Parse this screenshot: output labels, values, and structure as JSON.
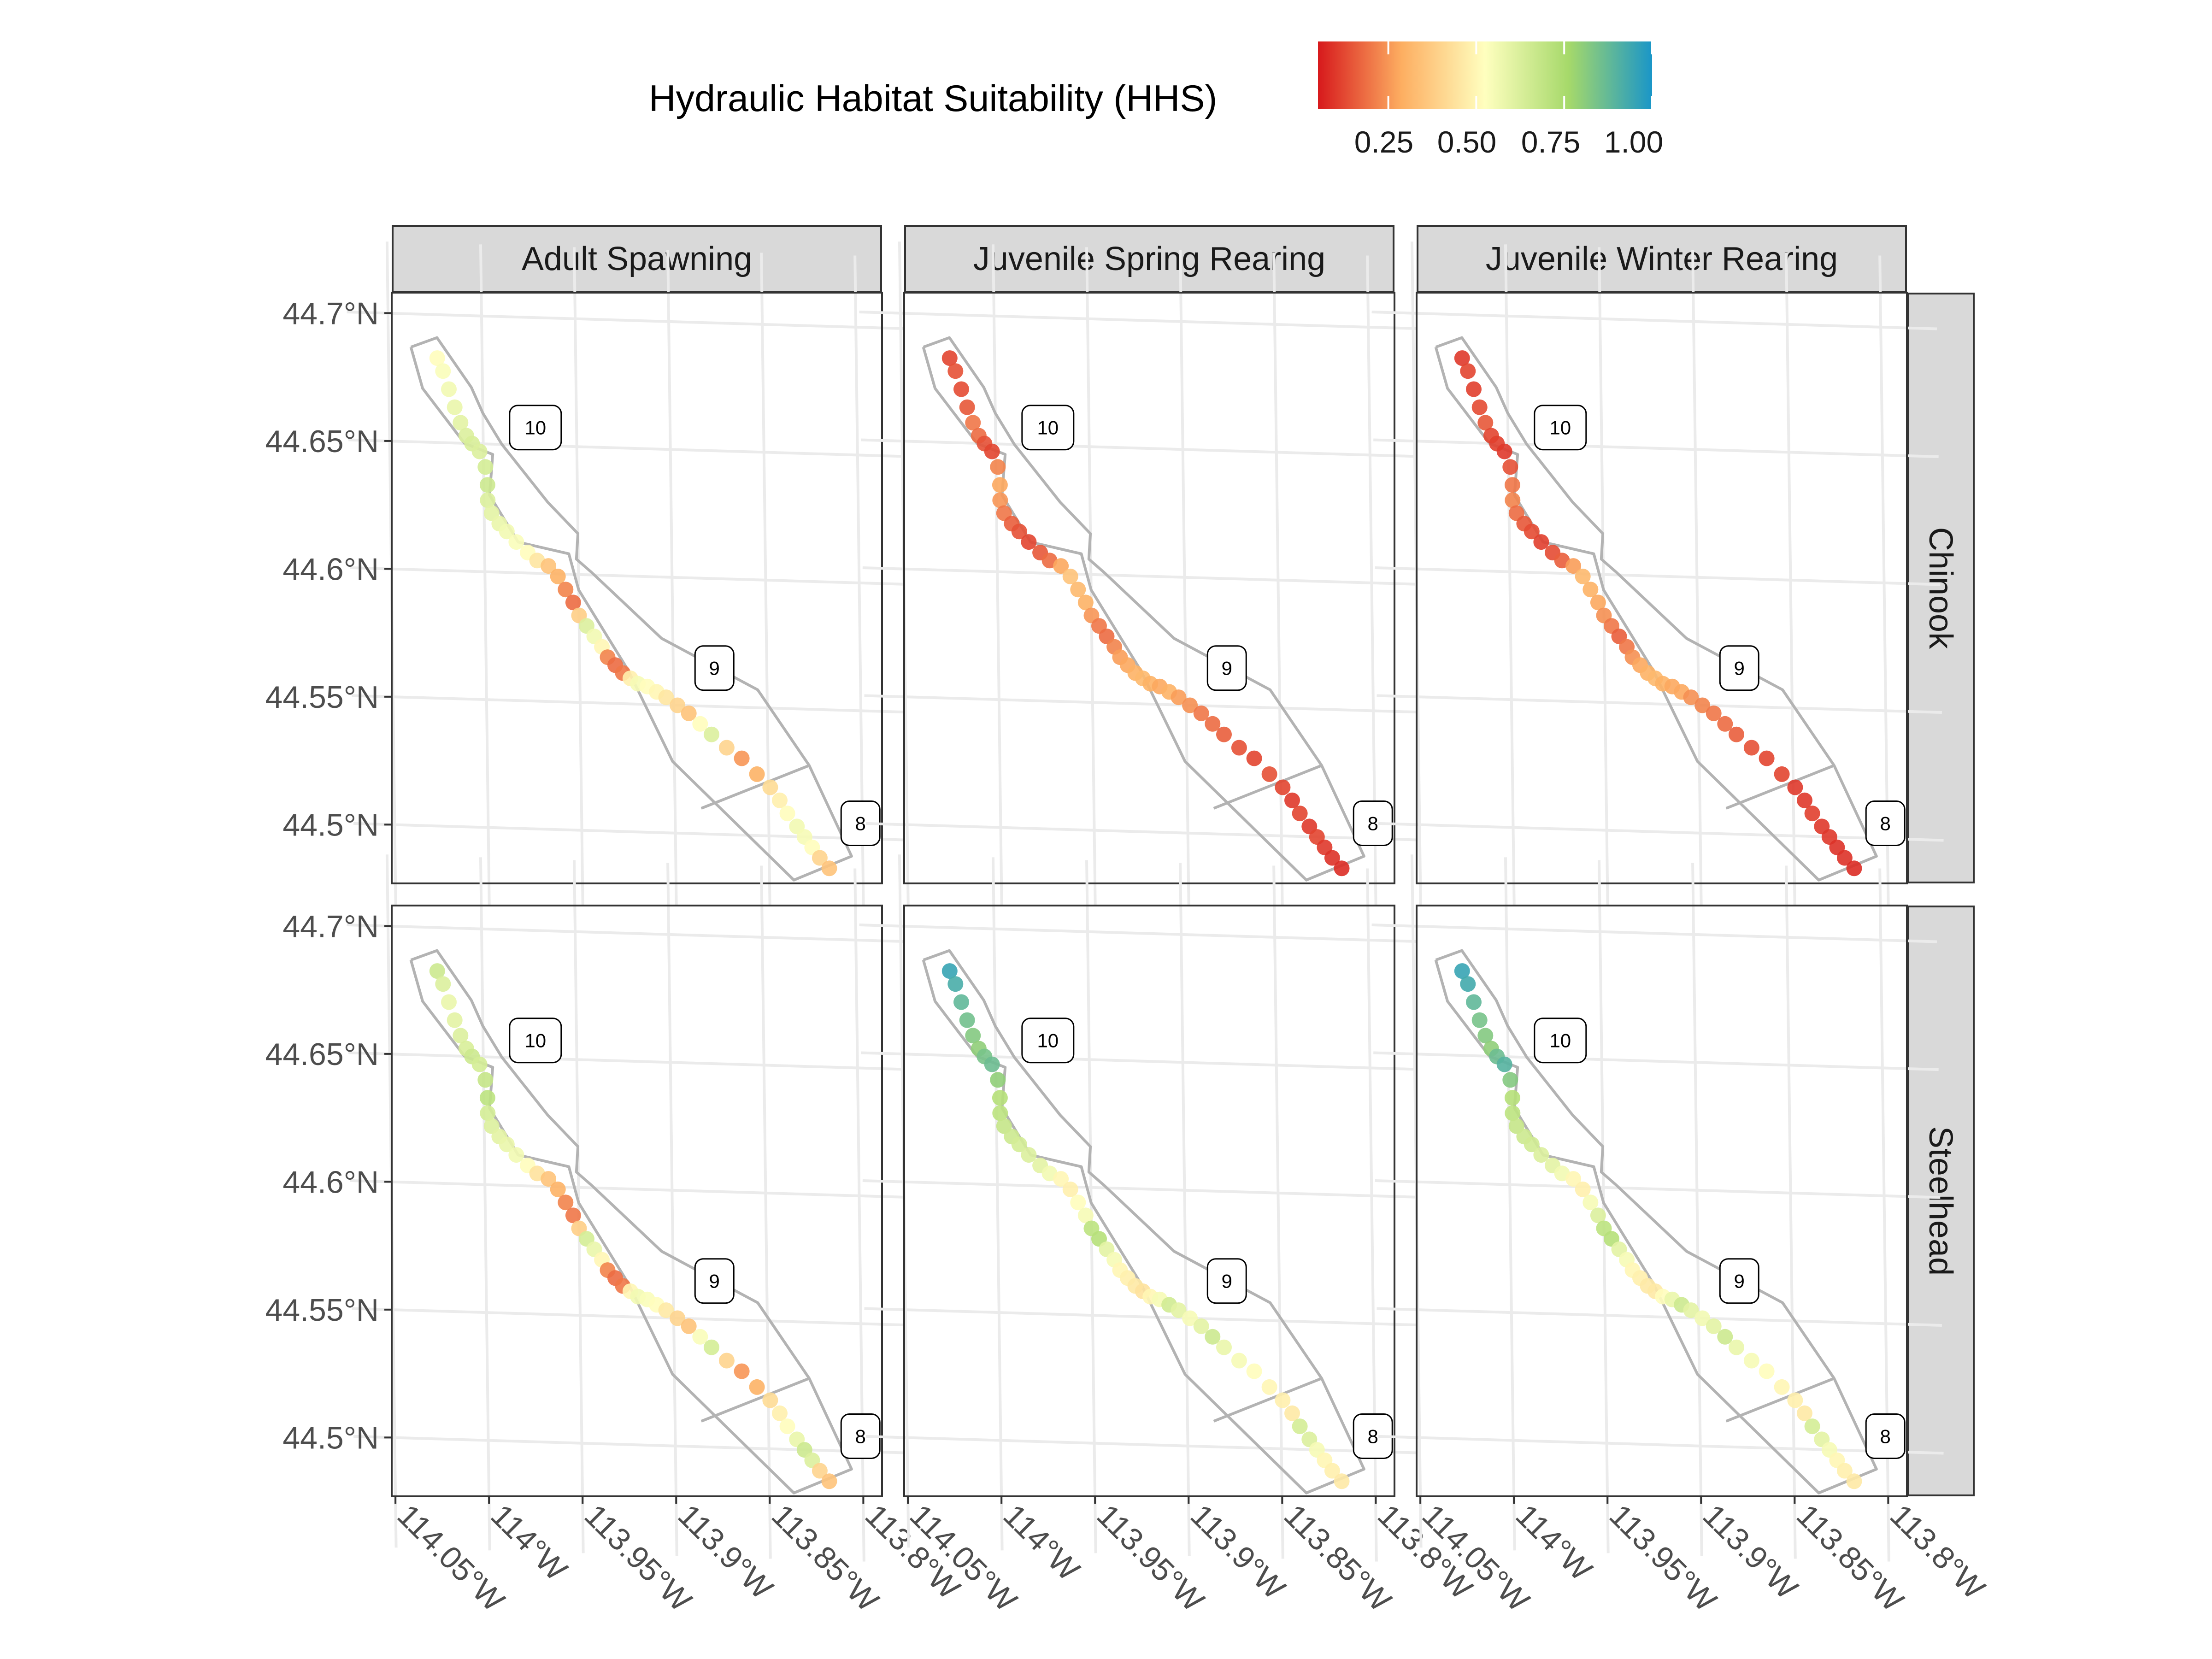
{
  "legend": {
    "title": "Hydraulic Habitat Suitability (HHS)",
    "ticks": [
      "0.25",
      "0.50",
      "0.75",
      "1.00"
    ],
    "tick_values": [
      0.25,
      0.5,
      0.75,
      1.0
    ],
    "range": [
      0.05,
      1.0
    ],
    "colors": [
      "#d7191c",
      "#fdae61",
      "#ffffbf",
      "#a6d96a",
      "#1a96c8"
    ]
  },
  "facets": {
    "columns": [
      "Adult Spawning",
      "Juvenile Spring Rearing",
      "Juvenile Winter Rearing"
    ],
    "rows": [
      "Chinook",
      "Steelhead"
    ]
  },
  "axes": {
    "x_labels": [
      "114.05°W",
      "114°W",
      "113.95°W",
      "113.9°W",
      "113.85°W",
      "113.8°W"
    ],
    "x_values": [
      -114.05,
      -114.0,
      -113.95,
      -113.9,
      -113.85,
      -113.8
    ],
    "y_labels": [
      "44.7°N",
      "44.65°N",
      "44.6°N",
      "44.55°N",
      "44.5°N"
    ],
    "y_values": [
      44.7,
      44.65,
      44.6,
      44.55,
      44.5
    ],
    "xlim": [
      -114.052,
      -113.79
    ],
    "ylim": [
      44.477,
      44.708
    ]
  },
  "reaches": [
    {
      "label": "10",
      "lon": -113.972,
      "lat": 44.657
    },
    {
      "label": "9",
      "lon": -113.878,
      "lat": 44.565
    },
    {
      "label": "8",
      "lon": -113.801,
      "lat": 44.506
    }
  ],
  "reach_boundaries": [
    {
      "lon": [
        -114.038,
        -114.024,
        -114.006,
        -114.0,
        -113.99,
        -113.966,
        -113.95,
        -113.951,
        -113.943,
        -113.906,
        -113.855,
        -113.828,
        -113.806,
        -113.837,
        -113.901,
        -113.924,
        -113.95,
        -113.955,
        -113.982,
        -113.997,
        -113.995,
        -114.01,
        -114.032,
        -114.038
      ],
      "lat": [
        44.687,
        44.691,
        44.672,
        44.662,
        44.65,
        44.628,
        44.616,
        44.606,
        44.601,
        44.576,
        44.557,
        44.528,
        44.493,
        44.483,
        44.528,
        44.563,
        44.594,
        44.608,
        44.612,
        44.63,
        44.646,
        44.65,
        44.671,
        44.687
      ]
    },
    {
      "lon": [
        -113.886,
        -113.828
      ],
      "lat": [
        44.51,
        44.528
      ]
    }
  ],
  "chart_data": {
    "type": "scatter",
    "title": "",
    "xlabel": "",
    "ylabel": "",
    "legend_title": "Hydraulic Habitat Suitability (HHS)",
    "points": {
      "lon": [
        -114.024,
        -114.021,
        -114.018,
        -114.015,
        -114.012,
        -114.009,
        -114.006,
        -114.002,
        -113.999,
        -113.998,
        -113.998,
        -113.996,
        -113.992,
        -113.988,
        -113.983,
        -113.977,
        -113.972,
        -113.966,
        -113.961,
        -113.957,
        -113.953,
        -113.95,
        -113.946,
        -113.942,
        -113.938,
        -113.935,
        -113.931,
        -113.927,
        -113.923,
        -113.919,
        -113.914,
        -113.909,
        -113.904,
        -113.898,
        -113.892,
        -113.886,
        -113.88,
        -113.872,
        -113.864,
        -113.856,
        -113.849,
        -113.844,
        -113.84,
        -113.835,
        -113.831,
        -113.827,
        -113.823,
        -113.818
      ],
      "lat": [
        44.683,
        44.678,
        44.671,
        44.664,
        44.658,
        44.653,
        44.65,
        44.647,
        44.641,
        44.634,
        44.628,
        44.623,
        44.619,
        44.616,
        44.612,
        44.608,
        44.605,
        44.603,
        44.599,
        44.594,
        44.589,
        44.584,
        44.58,
        44.576,
        44.572,
        44.568,
        44.565,
        44.562,
        44.56,
        44.558,
        44.557,
        44.555,
        44.553,
        44.55,
        44.547,
        44.543,
        44.539,
        44.534,
        44.53,
        44.524,
        44.519,
        44.514,
        44.509,
        44.504,
        44.5,
        44.496,
        44.492,
        44.488
      ]
    },
    "panels": [
      {
        "species": "Chinook",
        "life_stage": "Adult Spawning",
        "hhs": [
          0.52,
          0.54,
          0.56,
          0.58,
          0.6,
          0.62,
          0.63,
          0.62,
          0.64,
          0.66,
          0.62,
          0.6,
          0.58,
          0.56,
          0.54,
          0.52,
          0.45,
          0.35,
          0.3,
          0.22,
          0.18,
          0.38,
          0.62,
          0.56,
          0.5,
          0.22,
          0.18,
          0.2,
          0.48,
          0.55,
          0.52,
          0.5,
          0.45,
          0.4,
          0.35,
          0.52,
          0.62,
          0.4,
          0.25,
          0.3,
          0.42,
          0.48,
          0.52,
          0.56,
          0.55,
          0.52,
          0.4,
          0.35
        ]
      },
      {
        "species": "Chinook",
        "life_stage": "Juvenile Spring Rearing",
        "hhs": [
          0.12,
          0.14,
          0.13,
          0.15,
          0.2,
          0.18,
          0.14,
          0.12,
          0.22,
          0.28,
          0.25,
          0.2,
          0.16,
          0.14,
          0.12,
          0.15,
          0.18,
          0.28,
          0.35,
          0.32,
          0.3,
          0.25,
          0.2,
          0.18,
          0.22,
          0.26,
          0.28,
          0.3,
          0.32,
          0.3,
          0.28,
          0.3,
          0.26,
          0.24,
          0.2,
          0.18,
          0.16,
          0.14,
          0.12,
          0.14,
          0.12,
          0.1,
          0.12,
          0.1,
          0.12,
          0.1,
          0.09,
          0.08
        ]
      },
      {
        "species": "Chinook",
        "life_stage": "Juvenile Winter Rearing",
        "hhs": [
          0.1,
          0.12,
          0.11,
          0.13,
          0.15,
          0.12,
          0.11,
          0.1,
          0.14,
          0.2,
          0.22,
          0.18,
          0.15,
          0.13,
          0.11,
          0.13,
          0.16,
          0.26,
          0.32,
          0.3,
          0.28,
          0.24,
          0.2,
          0.16,
          0.2,
          0.24,
          0.28,
          0.3,
          0.32,
          0.3,
          0.28,
          0.28,
          0.24,
          0.22,
          0.2,
          0.18,
          0.16,
          0.14,
          0.12,
          0.12,
          0.1,
          0.1,
          0.11,
          0.1,
          0.1,
          0.09,
          0.09,
          0.08
        ]
      },
      {
        "species": "Steelhead",
        "life_stage": "Adult Spawning",
        "hhs": [
          0.66,
          0.62,
          0.58,
          0.6,
          0.62,
          0.63,
          0.66,
          0.64,
          0.68,
          0.7,
          0.64,
          0.62,
          0.6,
          0.58,
          0.56,
          0.52,
          0.44,
          0.35,
          0.3,
          0.22,
          0.2,
          0.38,
          0.64,
          0.58,
          0.5,
          0.22,
          0.18,
          0.2,
          0.5,
          0.56,
          0.54,
          0.52,
          0.46,
          0.4,
          0.35,
          0.54,
          0.64,
          0.4,
          0.25,
          0.3,
          0.42,
          0.48,
          0.52,
          0.58,
          0.66,
          0.62,
          0.4,
          0.35
        ]
      },
      {
        "species": "Steelhead",
        "life_stage": "Juvenile Spring Rearing",
        "hhs": [
          0.95,
          0.92,
          0.88,
          0.85,
          0.82,
          0.8,
          0.84,
          0.86,
          0.8,
          0.72,
          0.7,
          0.68,
          0.66,
          0.64,
          0.62,
          0.6,
          0.56,
          0.5,
          0.48,
          0.52,
          0.55,
          0.7,
          0.72,
          0.6,
          0.55,
          0.5,
          0.48,
          0.46,
          0.44,
          0.5,
          0.55,
          0.65,
          0.6,
          0.55,
          0.6,
          0.66,
          0.58,
          0.55,
          0.52,
          0.5,
          0.48,
          0.46,
          0.64,
          0.62,
          0.55,
          0.5,
          0.48,
          0.46
        ]
      },
      {
        "species": "Steelhead",
        "life_stage": "Juvenile Winter Rearing",
        "hhs": [
          0.95,
          0.93,
          0.88,
          0.84,
          0.82,
          0.8,
          0.86,
          0.9,
          0.82,
          0.72,
          0.7,
          0.68,
          0.66,
          0.65,
          0.62,
          0.6,
          0.56,
          0.5,
          0.48,
          0.55,
          0.62,
          0.7,
          0.72,
          0.6,
          0.55,
          0.5,
          0.48,
          0.46,
          0.46,
          0.52,
          0.58,
          0.66,
          0.6,
          0.56,
          0.6,
          0.66,
          0.58,
          0.55,
          0.52,
          0.5,
          0.48,
          0.46,
          0.64,
          0.6,
          0.55,
          0.5,
          0.48,
          0.46
        ]
      }
    ]
  }
}
